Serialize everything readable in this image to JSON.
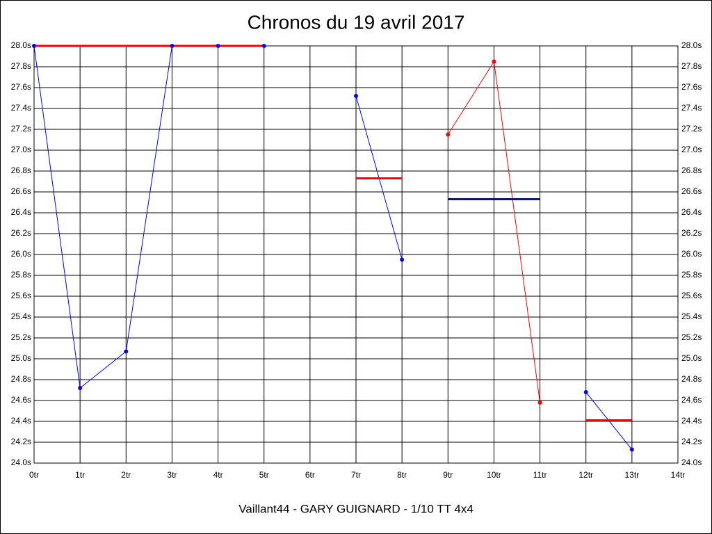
{
  "chart_data": {
    "type": "line",
    "title": "Chronos du 19 avril 2017",
    "footer": "Vaillant44 - GARY GUIGNARD - 1/10 TT 4x4",
    "x": [
      0,
      1,
      2,
      3,
      4,
      5,
      6,
      7,
      8,
      9,
      10,
      11,
      12,
      13
    ],
    "series": [
      {
        "color": "#0000ff",
        "values": [
          28.0,
          24.72,
          25.07,
          28.0,
          28.0,
          28.0,
          null,
          27.52,
          25.95,
          null,
          null,
          null,
          24.68,
          24.13
        ]
      },
      {
        "color": "#ff0000",
        "values": [
          null,
          null,
          null,
          null,
          null,
          null,
          null,
          null,
          null,
          27.15,
          27.85,
          24.58,
          null,
          null
        ]
      }
    ],
    "averages": [
      {
        "color": "#ff0000",
        "value": 28.0,
        "x_range": [
          0,
          5
        ]
      },
      {
        "color": "#ff0000",
        "value": 26.73,
        "x_range": [
          7,
          8
        ]
      },
      {
        "color": "#0000ff",
        "value": 26.53,
        "x_range": [
          9,
          11
        ]
      },
      {
        "color": "#ff0000",
        "value": 24.41,
        "x_range": [
          12,
          13
        ]
      }
    ],
    "xlim": [
      0,
      14
    ],
    "xticks": [
      {
        "value": 0,
        "label": "0tr"
      },
      {
        "value": 1,
        "label": "1tr"
      },
      {
        "value": 2,
        "label": "2tr"
      },
      {
        "value": 3,
        "label": "3tr"
      },
      {
        "value": 4,
        "label": "4tr"
      },
      {
        "value": 5,
        "label": "5tr"
      },
      {
        "value": 6,
        "label": "6tr"
      },
      {
        "value": 7,
        "label": "7tr"
      },
      {
        "value": 8,
        "label": "8tr"
      },
      {
        "value": 9,
        "label": "9tr"
      },
      {
        "value": 10,
        "label": "10tr"
      },
      {
        "value": 11,
        "label": "11tr"
      },
      {
        "value": 12,
        "label": "12tr"
      },
      {
        "value": 13,
        "label": "13tr"
      },
      {
        "value": 14,
        "label": "14tr"
      }
    ],
    "ylim": [
      24.0,
      28.0
    ],
    "yticks": [
      {
        "value": 24.0,
        "label": "24.0s"
      },
      {
        "value": 24.2,
        "label": "24.2s"
      },
      {
        "value": 24.4,
        "label": "24.4s"
      },
      {
        "value": 24.6,
        "label": "24.6s"
      },
      {
        "value": 24.8,
        "label": "24.8s"
      },
      {
        "value": 25.0,
        "label": "25.0s"
      },
      {
        "value": 25.2,
        "label": "25.2s"
      },
      {
        "value": 25.4,
        "label": "25.4s"
      },
      {
        "value": 25.6,
        "label": "25.6s"
      },
      {
        "value": 25.8,
        "label": "25.8s"
      },
      {
        "value": 26.0,
        "label": "26.0s"
      },
      {
        "value": 26.2,
        "label": "26.2s"
      },
      {
        "value": 26.4,
        "label": "26.4s"
      },
      {
        "value": 26.6,
        "label": "26.6s"
      },
      {
        "value": 26.8,
        "label": "26.8s"
      },
      {
        "value": 27.0,
        "label": "27.0s"
      },
      {
        "value": 27.2,
        "label": "27.2s"
      },
      {
        "value": 27.4,
        "label": "27.4s"
      },
      {
        "value": 27.6,
        "label": "27.6s"
      },
      {
        "value": 27.8,
        "label": "27.8s"
      },
      {
        "value": 28.0,
        "label": "28.0s"
      }
    ],
    "grid": true
  }
}
